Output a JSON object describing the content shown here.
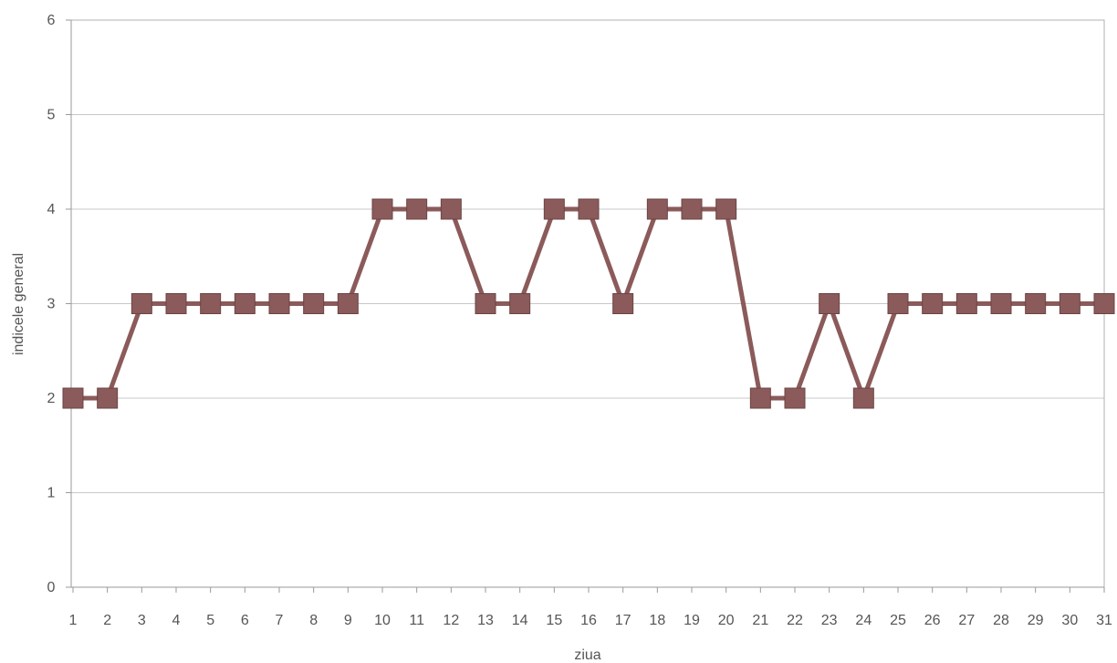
{
  "chart_data": {
    "type": "line",
    "title": "",
    "xlabel": "ziua",
    "ylabel": "indicele general",
    "categories": [
      "1",
      "2",
      "3",
      "4",
      "5",
      "6",
      "7",
      "8",
      "9",
      "10",
      "11",
      "12",
      "13",
      "14",
      "15",
      "16",
      "17",
      "18",
      "19",
      "20",
      "21",
      "22",
      "23",
      "24",
      "25",
      "26",
      "27",
      "28",
      "29",
      "30",
      "31"
    ],
    "series": [
      {
        "values": [
          2,
          2,
          3,
          3,
          3,
          3,
          3,
          3,
          3,
          4,
          4,
          4,
          3,
          3,
          4,
          4,
          3,
          4,
          4,
          4,
          2,
          2,
          3,
          2,
          3,
          3,
          3,
          3,
          3,
          3,
          3
        ]
      }
    ],
    "ylim": [
      0,
      6
    ],
    "yticks": [
      "0",
      "1",
      "2",
      "3",
      "4",
      "5",
      "6"
    ],
    "grid": true,
    "legend": "none",
    "marker": "square",
    "colors": {
      "series": "#8B5A5A",
      "grid": "#c8c8c8",
      "axis": "#9a9a9a",
      "frame": "#b0b0b0"
    }
  }
}
